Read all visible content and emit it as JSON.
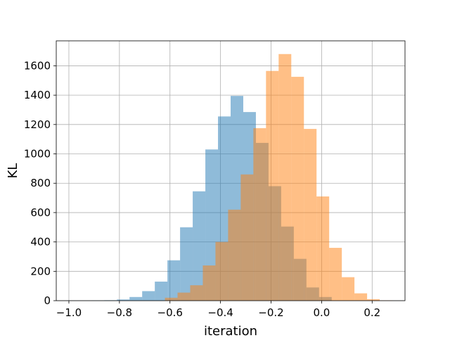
{
  "chart_data": {
    "type": "bar",
    "title": "",
    "xlabel": "iteration",
    "ylabel": "KL",
    "xlim": [
      -1.05,
      0.33
    ],
    "ylim": [
      0,
      1770
    ],
    "grid": true,
    "x_ticks": [
      -1.0,
      -0.8,
      -0.6,
      -0.4,
      -0.2,
      0.0,
      0.2
    ],
    "x_tick_labels": [
      "−1.0",
      "−0.8",
      "−0.6",
      "−0.4",
      "−0.2",
      "0.0",
      "0.2"
    ],
    "y_ticks": [
      0,
      200,
      400,
      600,
      800,
      1000,
      1200,
      1400,
      1600
    ],
    "y_tick_labels": [
      "0",
      "200",
      "400",
      "600",
      "800",
      "1000",
      "1200",
      "1400",
      "1600"
    ],
    "series": [
      {
        "color": "#1f77b4",
        "opacity": 0.5,
        "bin_edges": [
          -1.01,
          -0.96,
          -0.91,
          -0.86,
          -0.81,
          -0.76,
          -0.71,
          -0.66,
          -0.61,
          -0.56,
          -0.51,
          -0.46,
          -0.41,
          -0.36,
          -0.31,
          -0.26,
          -0.21,
          -0.16,
          -0.11,
          -0.06,
          -0.01,
          0.04
        ],
        "counts": [
          1,
          1,
          2,
          3,
          8,
          25,
          65,
          130,
          275,
          500,
          745,
          1030,
          1255,
          1395,
          1285,
          1075,
          780,
          505,
          285,
          90,
          25
        ]
      },
      {
        "color": "#ff7f0e",
        "opacity": 0.5,
        "bin_edges": [
          -0.62,
          -0.57,
          -0.52,
          -0.47,
          -0.42,
          -0.37,
          -0.32,
          -0.27,
          -0.22,
          -0.17,
          -0.12,
          -0.07,
          -0.02,
          0.03,
          0.08,
          0.13,
          0.18,
          0.23,
          0.28
        ],
        "counts": [
          20,
          55,
          105,
          240,
          400,
          620,
          860,
          1175,
          1565,
          1680,
          1525,
          1170,
          710,
          360,
          160,
          50,
          10,
          2
        ]
      }
    ]
  }
}
